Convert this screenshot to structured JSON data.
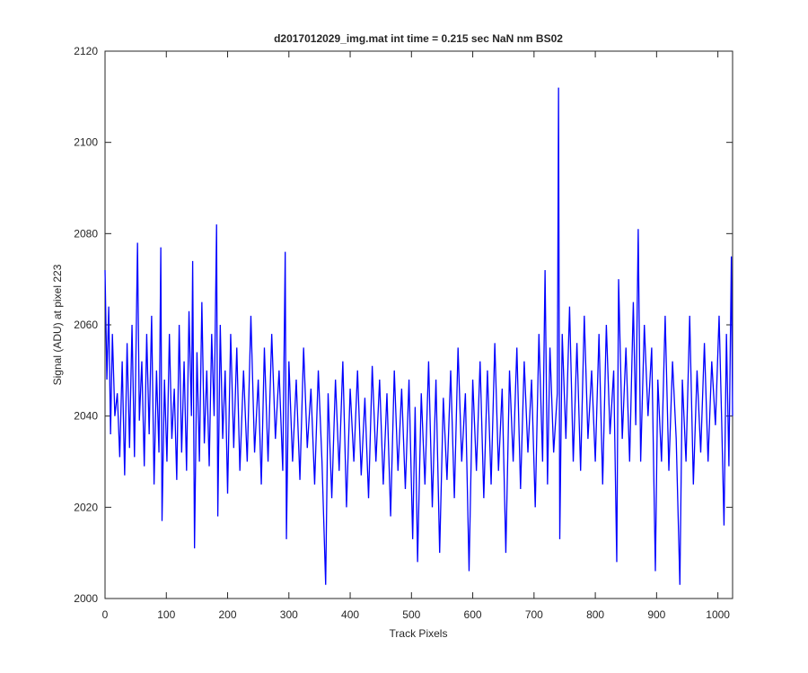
{
  "chart_data": {
    "type": "line",
    "title": "d2017012029_img.mat int time = 0.215 sec  NaN nm BS02",
    "xlabel": "Track Pixels",
    "ylabel": "Signal (ADU) at pixel 223",
    "color": "#0000ff",
    "xlim": [
      0,
      1024
    ],
    "ylim": [
      2000,
      2120
    ],
    "xticks": [
      0,
      100,
      200,
      300,
      400,
      500,
      600,
      700,
      800,
      900,
      1000
    ],
    "yticks": [
      2000,
      2020,
      2040,
      2060,
      2080,
      2100,
      2120
    ],
    "grid": false,
    "x": [
      0,
      3,
      6,
      9,
      12,
      16,
      20,
      24,
      28,
      32,
      36,
      40,
      44,
      48,
      53,
      56,
      60,
      64,
      68,
      72,
      76,
      80,
      84,
      88,
      91,
      93,
      97,
      101,
      105,
      109,
      113,
      117,
      121,
      125,
      129,
      133,
      137,
      141,
      143,
      146,
      150,
      154,
      158,
      162,
      166,
      170,
      174,
      178,
      182,
      184,
      188,
      192,
      196,
      200,
      205,
      210,
      215,
      220,
      226,
      232,
      238,
      244,
      250,
      255,
      260,
      266,
      272,
      278,
      284,
      290,
      294,
      296,
      300,
      306,
      312,
      318,
      324,
      330,
      336,
      342,
      348,
      354,
      360,
      364,
      370,
      376,
      382,
      388,
      394,
      400,
      406,
      412,
      418,
      424,
      430,
      436,
      442,
      448,
      454,
      460,
      466,
      472,
      478,
      484,
      490,
      496,
      502,
      506,
      510,
      516,
      522,
      528,
      534,
      540,
      546,
      552,
      558,
      564,
      570,
      576,
      582,
      588,
      594,
      600,
      606,
      612,
      618,
      624,
      630,
      636,
      642,
      648,
      654,
      660,
      666,
      672,
      678,
      684,
      690,
      696,
      702,
      708,
      714,
      718,
      722,
      726,
      732,
      738,
      740,
      742,
      746,
      752,
      758,
      764,
      770,
      776,
      782,
      788,
      794,
      800,
      806,
      812,
      818,
      824,
      830,
      835,
      838,
      844,
      850,
      856,
      862,
      866,
      870,
      874,
      880,
      886,
      892,
      898,
      902,
      908,
      914,
      920,
      926,
      932,
      938,
      942,
      948,
      954,
      960,
      966,
      972,
      978,
      984,
      990,
      996,
      1002,
      1006,
      1010,
      1014,
      1018,
      1022,
      1024
    ],
    "values": [
      2072,
      2048,
      2064,
      2036,
      2058,
      2040,
      2045,
      2031,
      2052,
      2027,
      2056,
      2033,
      2060,
      2031,
      2078,
      2039,
      2052,
      2029,
      2058,
      2036,
      2062,
      2025,
      2050,
      2032,
      2077,
      2017,
      2048,
      2030,
      2058,
      2035,
      2046,
      2026,
      2060,
      2032,
      2052,
      2028,
      2063,
      2040,
      2074,
      2011,
      2054,
      2030,
      2065,
      2034,
      2050,
      2029,
      2058,
      2040,
      2082,
      2018,
      2060,
      2035,
      2050,
      2023,
      2058,
      2033,
      2055,
      2028,
      2050,
      2030,
      2062,
      2032,
      2048,
      2025,
      2055,
      2030,
      2058,
      2035,
      2050,
      2028,
      2076,
      2013,
      2052,
      2030,
      2048,
      2026,
      2055,
      2033,
      2046,
      2025,
      2050,
      2030,
      2003,
      2045,
      2022,
      2048,
      2028,
      2052,
      2020,
      2046,
      2030,
      2050,
      2027,
      2044,
      2022,
      2051,
      2030,
      2048,
      2025,
      2045,
      2018,
      2050,
      2028,
      2046,
      2024,
      2048,
      2013,
      2042,
      2008,
      2045,
      2025,
      2052,
      2020,
      2048,
      2010,
      2044,
      2026,
      2050,
      2022,
      2055,
      2030,
      2045,
      2006,
      2048,
      2028,
      2052,
      2022,
      2050,
      2025,
      2056,
      2028,
      2046,
      2010,
      2050,
      2030,
      2055,
      2024,
      2052,
      2032,
      2048,
      2020,
      2058,
      2030,
      2072,
      2025,
      2055,
      2032,
      2045,
      2112,
      2013,
      2058,
      2035,
      2064,
      2030,
      2056,
      2028,
      2062,
      2035,
      2050,
      2030,
      2058,
      2025,
      2060,
      2036,
      2050,
      2008,
      2070,
      2035,
      2055,
      2030,
      2065,
      2038,
      2081,
      2030,
      2060,
      2040,
      2055,
      2006,
      2048,
      2030,
      2062,
      2028,
      2052,
      2035,
      2003,
      2048,
      2030,
      2062,
      2025,
      2050,
      2032,
      2056,
      2030,
      2052,
      2038,
      2062,
      2040,
      2016,
      2058,
      2029,
      2075,
      2040
    ]
  }
}
